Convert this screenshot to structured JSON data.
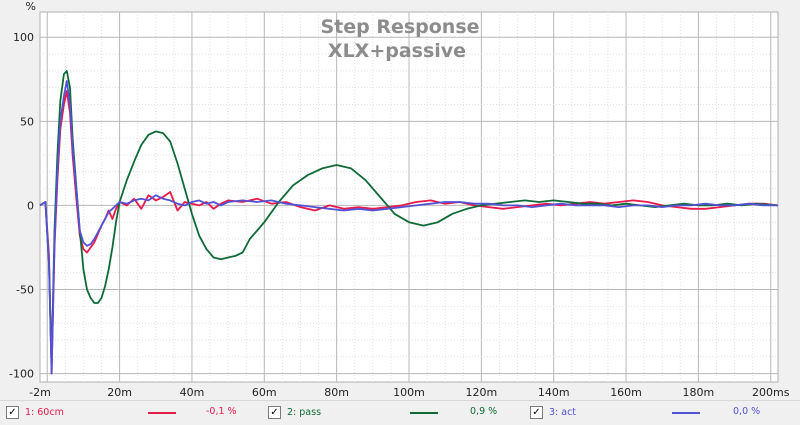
{
  "chart_data": {
    "type": "line",
    "title": "Step Response",
    "subtitle": "XLX+passive",
    "ylabel": "%",
    "xunit": "ms",
    "xlim": [
      -2,
      202
    ],
    "ylim": [
      -105,
      115
    ],
    "x_ticks": [
      {
        "value": -2,
        "label": "-2m"
      },
      {
        "value": 20,
        "label": "20m"
      },
      {
        "value": 40,
        "label": "40m"
      },
      {
        "value": 60,
        "label": "60m"
      },
      {
        "value": 80,
        "label": "80m"
      },
      {
        "value": 100,
        "label": "100m"
      },
      {
        "value": 120,
        "label": "120m"
      },
      {
        "value": 140,
        "label": "140m"
      },
      {
        "value": 160,
        "label": "160m"
      },
      {
        "value": 180,
        "label": "180m"
      },
      {
        "value": 200,
        "label": "200ms"
      }
    ],
    "y_ticks": [
      {
        "value": 100,
        "label": "100"
      },
      {
        "value": 50,
        "label": "50"
      },
      {
        "value": 0,
        "label": "0"
      },
      {
        "value": -50,
        "label": "-50"
      },
      {
        "value": -100,
        "label": "-100"
      }
    ],
    "grid": true,
    "series": [
      {
        "name": "1: 60cm",
        "value_label": "-0,1 %",
        "color": "#e8194b",
        "x": [
          -2,
          -0.5,
          0.5,
          1.2,
          2,
          2.8,
          3.6,
          4.6,
          5.4,
          6.3,
          7,
          8,
          9,
          10,
          11,
          12,
          13,
          14,
          15,
          16,
          17,
          18,
          19,
          20,
          22,
          24,
          26,
          28,
          30,
          32,
          34,
          36,
          38,
          40,
          42,
          44,
          46,
          48,
          50,
          54,
          58,
          62,
          66,
          70,
          74,
          78,
          82,
          86,
          90,
          94,
          98,
          102,
          106,
          110,
          114,
          118,
          122,
          126,
          130,
          134,
          138,
          142,
          146,
          150,
          154,
          158,
          162,
          166,
          170,
          174,
          178,
          182,
          186,
          190,
          194,
          198,
          202
        ],
        "y": [
          0,
          2,
          -30,
          -100,
          -25,
          15,
          45,
          60,
          68,
          55,
          30,
          5,
          -18,
          -26,
          -28,
          -25,
          -22,
          -17,
          -12,
          -8,
          -3,
          -8,
          -2,
          2,
          0,
          4,
          -2,
          6,
          3,
          5,
          8,
          -3,
          2,
          1,
          0,
          2,
          -2,
          1,
          3,
          2,
          4,
          1,
          2,
          -1,
          -3,
          0,
          -2,
          -1,
          -2,
          -1,
          0,
          2,
          3,
          1,
          2,
          0,
          -1,
          -2,
          -1,
          0,
          1,
          0,
          1,
          2,
          1,
          2,
          3,
          2,
          0,
          -1,
          -2,
          -2,
          -1,
          0,
          1,
          1,
          0
        ]
      },
      {
        "name": "2: pass",
        "value_label": "0,9 %",
        "color": "#0f6a36",
        "x": [
          -2,
          -0.5,
          0.5,
          1.2,
          2,
          2.8,
          3.6,
          4.6,
          5.4,
          6.3,
          7,
          8,
          9,
          10,
          11,
          12,
          13,
          14,
          15,
          16,
          17,
          18,
          19,
          20,
          22,
          24,
          26,
          28,
          30,
          32,
          34,
          36,
          38,
          40,
          42,
          44,
          46,
          48,
          50,
          52,
          54,
          56,
          58,
          60,
          64,
          68,
          72,
          76,
          80,
          84,
          88,
          92,
          96,
          100,
          104,
          108,
          112,
          116,
          120,
          124,
          128,
          132,
          136,
          140,
          144,
          148,
          152,
          156,
          160,
          164,
          168,
          172,
          176,
          180,
          184,
          188,
          192,
          196,
          202
        ],
        "y": [
          0,
          2,
          -35,
          -95,
          -15,
          30,
          62,
          78,
          80,
          70,
          40,
          12,
          -15,
          -38,
          -50,
          -55,
          -58,
          -58,
          -55,
          -48,
          -38,
          -25,
          -10,
          2,
          15,
          26,
          36,
          42,
          44,
          43,
          38,
          25,
          10,
          -5,
          -18,
          -26,
          -31,
          -32,
          -31,
          -30,
          -28,
          -20,
          -15,
          -10,
          2,
          12,
          18,
          22,
          24,
          22,
          15,
          5,
          -5,
          -10,
          -12,
          -10,
          -5,
          -2,
          0,
          1,
          2,
          3,
          2,
          3,
          2,
          1,
          1,
          0,
          1,
          0,
          -1,
          0,
          1,
          0,
          0,
          1,
          0,
          1,
          0
        ]
      },
      {
        "name": "3: act",
        "value_label": "0,0 %",
        "color": "#5252d6",
        "x": [
          -2,
          -0.5,
          0.5,
          1.2,
          2,
          2.8,
          3.6,
          4.6,
          5.4,
          6.3,
          7,
          8,
          9,
          10,
          11,
          12,
          13,
          14,
          15,
          16,
          17,
          18,
          19,
          20,
          22,
          24,
          26,
          28,
          30,
          32,
          34,
          36,
          38,
          40,
          42,
          44,
          46,
          48,
          50,
          54,
          58,
          62,
          66,
          70,
          74,
          78,
          82,
          86,
          90,
          94,
          98,
          102,
          106,
          110,
          114,
          118,
          122,
          126,
          130,
          134,
          138,
          142,
          146,
          150,
          154,
          158,
          162,
          166,
          170,
          174,
          178,
          182,
          186,
          190,
          194,
          198,
          202
        ],
        "y": [
          0,
          2,
          -35,
          -100,
          -22,
          20,
          50,
          65,
          74,
          60,
          35,
          10,
          -15,
          -22,
          -24,
          -23,
          -20,
          -16,
          -12,
          -8,
          -4,
          -2,
          0,
          2,
          1,
          3,
          4,
          3,
          6,
          4,
          3,
          1,
          0,
          2,
          3,
          1,
          2,
          0,
          2,
          3,
          2,
          3,
          1,
          0,
          -1,
          -2,
          -3,
          -2,
          -3,
          -2,
          -1,
          0,
          1,
          2,
          2,
          1,
          1,
          0,
          0,
          -1,
          0,
          1,
          0,
          0,
          0,
          -1,
          0,
          0,
          -1,
          0,
          0,
          1,
          0,
          0,
          1,
          0,
          0
        ]
      }
    ]
  }
}
